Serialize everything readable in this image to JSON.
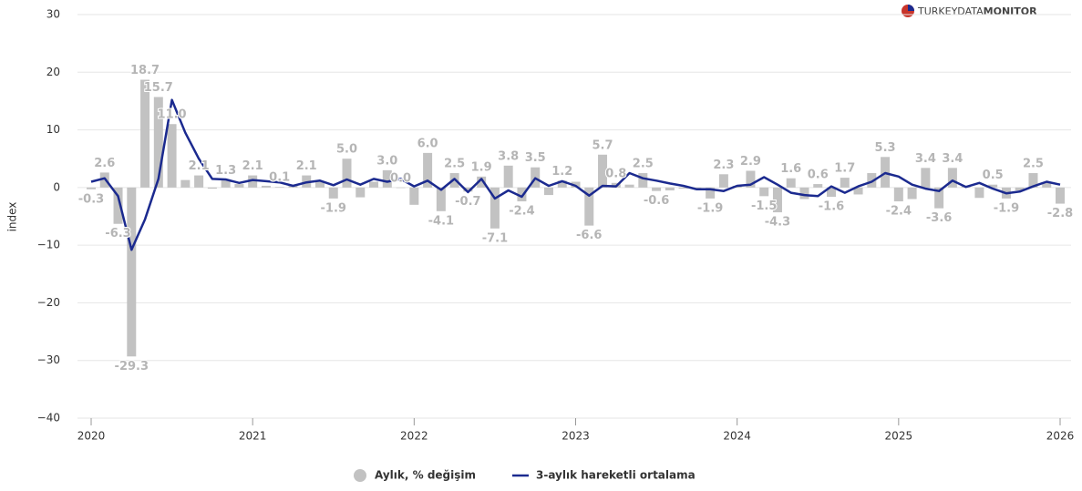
{
  "chart_data": {
    "type": "combo",
    "y_label": "index",
    "brand": {
      "light": "TURKEYDATA",
      "bold": "MONITOR"
    },
    "categories": [
      "2020",
      null,
      null,
      null,
      null,
      null,
      null,
      null,
      null,
      null,
      null,
      null,
      "2021",
      null,
      null,
      null,
      null,
      null,
      null,
      null,
      null,
      null,
      null,
      null,
      "2022",
      null,
      null,
      null,
      null,
      null,
      null,
      null,
      null,
      null,
      null,
      null,
      "2023",
      null,
      null,
      null,
      null,
      null,
      null,
      null,
      null,
      null,
      null,
      null,
      "2024",
      null,
      null,
      null,
      null,
      null,
      null,
      null,
      null,
      null,
      null,
      null,
      "2025",
      null,
      null,
      null,
      null,
      null,
      null,
      null,
      null,
      null,
      null,
      null,
      "2026"
    ],
    "series": [
      {
        "name": "Aylık, % değişim",
        "type": "bar",
        "color": "#c2c2c2",
        "values": [
          -0.3,
          2.6,
          -6.3,
          -29.3,
          18.7,
          15.7,
          11.0,
          1.3,
          2.1,
          -0.2,
          1.3,
          0.6,
          2.1,
          0.3,
          0.1,
          0.4,
          2.1,
          1.1,
          -1.9,
          5.0,
          -1.7,
          1.0,
          3.0,
          0.0,
          -3.0,
          6.0,
          -4.1,
          2.5,
          -0.7,
          1.9,
          -7.1,
          3.8,
          -2.4,
          3.5,
          -1.3,
          1.2,
          1.0,
          -6.6,
          5.7,
          0.8,
          0.5,
          2.5,
          -0.6,
          -0.5,
          -0.2,
          -0.3,
          -1.9,
          2.3,
          0.3,
          2.9,
          -1.5,
          -4.3,
          1.6,
          -2.0,
          0.6,
          -1.6,
          1.7,
          -1.2,
          2.5,
          5.3,
          -2.4,
          -2.0,
          3.4,
          -3.6,
          3.4,
          0.3,
          -1.8,
          0.5,
          -1.9,
          -0.5,
          2.5,
          0.8,
          -2.8
        ],
        "value_labels": [
          "-0.3",
          "2.6",
          "-6.3",
          "-29.3",
          "18.7",
          "15.7",
          "11.0",
          null,
          "2.1",
          null,
          "1.3",
          null,
          "2.1",
          null,
          "0.1",
          null,
          "2.1",
          null,
          "-1.9",
          "5.0",
          null,
          null,
          "3.0",
          "0.0",
          null,
          "6.0",
          "-4.1",
          "2.5",
          "-0.7",
          "1.9",
          "-7.1",
          "3.8",
          "-2.4",
          "3.5",
          null,
          "1.2",
          null,
          "-6.6",
          "5.7",
          "0.8",
          null,
          "2.5",
          "-0.6",
          null,
          null,
          null,
          "-1.9",
          "2.3",
          null,
          "2.9",
          "-1.5",
          "-4.3",
          "1.6",
          null,
          "0.6",
          "-1.6",
          "1.7",
          null,
          null,
          "5.3",
          "-2.4",
          null,
          "3.4",
          "-3.6",
          "3.4",
          null,
          null,
          "0.5",
          "-1.9",
          null,
          "2.5",
          null,
          "-2.8"
        ]
      },
      {
        "name": "3-aylık hareketli ortalama",
        "type": "line",
        "color": "#1b2a8f",
        "values": [
          1.0,
          1.6,
          -1.5,
          -10.8,
          -5.5,
          1.5,
          15.2,
          9.5,
          5.0,
          1.5,
          1.4,
          0.8,
          1.3,
          1.1,
          0.9,
          0.3,
          0.9,
          1.2,
          0.4,
          1.4,
          0.5,
          1.5,
          1.0,
          1.5,
          0.2,
          1.2,
          -0.4,
          1.5,
          -0.8,
          1.5,
          -1.9,
          -0.5,
          -1.6,
          1.6,
          0.3,
          1.1,
          0.3,
          -1.4,
          0.3,
          0.2,
          2.5,
          1.6,
          1.2,
          0.7,
          0.3,
          -0.3,
          -0.3,
          -0.6,
          0.3,
          0.5,
          1.8,
          0.5,
          -0.9,
          -1.3,
          -1.5,
          0.2,
          -0.9,
          0.2,
          1.0,
          2.5,
          1.9,
          0.5,
          -0.2,
          -0.6,
          1.2,
          0.1,
          0.8,
          -0.2,
          -1.0,
          -0.7,
          0.2,
          1.0,
          0.5
        ]
      }
    ],
    "ylim": [
      -40,
      30
    ],
    "yticks": [
      {
        "value": -40,
        "label": "−40"
      },
      {
        "value": -30,
        "label": "−30"
      },
      {
        "value": -20,
        "label": "−20"
      },
      {
        "value": -10,
        "label": "−10"
      },
      0,
      10,
      20,
      30
    ],
    "grid": true
  }
}
